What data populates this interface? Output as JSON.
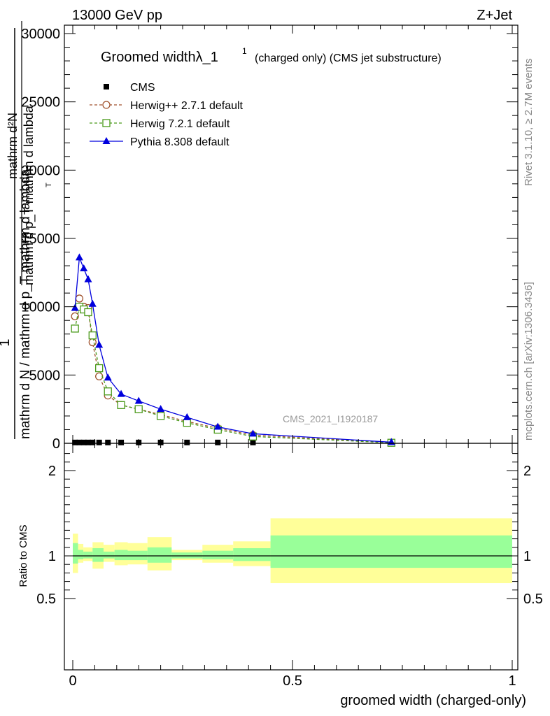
{
  "header": {
    "left": "13000 GeV pp",
    "right": "Z+Jet"
  },
  "side": {
    "rivet": "Rivet 3.1.10, ≥ 2.7M events",
    "mcplots": "mcplots.cern.ch [arXiv:1306.3436]"
  },
  "chart_data": [
    {
      "type": "line",
      "title": "Groomed widthλ_1",
      "title_sup": "1",
      "subtitle": "(charged only) (CMS jet substructure)",
      "ylabel_top": "1",
      "ylabel_bottom": "mathrm d N / mathrm d p_T mathrm d lambda",
      "ylabel_num": "mathrm d²N",
      "ylabel_den": "mathrm d p_T mathrm d lambda",
      "ylabel_sub": "T",
      "watermark": "CMS_2021_I1920187",
      "ylim": [
        0,
        30000
      ],
      "xlim": [
        0,
        1
      ],
      "yticks": [
        0,
        5000,
        10000,
        15000,
        20000,
        25000,
        30000
      ],
      "ytick_labels": [
        "0",
        "5000",
        "10000",
        "15000",
        "20000",
        "25000",
        "30000"
      ],
      "legend": {
        "placement": "top-left",
        "entries": [
          "CMS",
          "Herwig++ 2.7.1 default",
          "Herwig 7.2.1 default",
          "Pythia 8.308 default"
        ]
      },
      "colors": {
        "cms": "#000000",
        "herwigpp": "#a0522d",
        "herwig7": "#4a9a1a",
        "pythia": "#0000dd"
      },
      "series": [
        {
          "name": "CMS",
          "x": [
            0.005,
            0.015,
            0.025,
            0.035,
            0.045,
            0.06,
            0.08,
            0.11,
            0.15,
            0.2,
            0.26,
            0.33,
            0.41,
            0.725
          ],
          "y": [
            60,
            60,
            60,
            60,
            60,
            60,
            60,
            60,
            60,
            60,
            60,
            60,
            60,
            30
          ]
        },
        {
          "name": "Herwig++ 2.7.1 default",
          "x": [
            0.005,
            0.015,
            0.025,
            0.035,
            0.045,
            0.06,
            0.08,
            0.11,
            0.15,
            0.2,
            0.26,
            0.33,
            0.41,
            0.725
          ],
          "y": [
            9300,
            10600,
            10000,
            9900,
            7400,
            4900,
            3500,
            2800,
            2500,
            2100,
            1600,
            1100,
            600,
            50
          ]
        },
        {
          "name": "Herwig 7.2.1 default",
          "x": [
            0.005,
            0.015,
            0.025,
            0.035,
            0.045,
            0.06,
            0.08,
            0.11,
            0.15,
            0.2,
            0.26,
            0.33,
            0.41,
            0.725
          ],
          "y": [
            8400,
            10000,
            9800,
            9600,
            7900,
            5500,
            3800,
            2800,
            2500,
            2000,
            1500,
            1000,
            500,
            40
          ]
        },
        {
          "name": "Pythia 8.308 default",
          "x": [
            0.005,
            0.015,
            0.025,
            0.035,
            0.045,
            0.06,
            0.08,
            0.11,
            0.15,
            0.2,
            0.26,
            0.33,
            0.41,
            0.725
          ],
          "y": [
            9900,
            13600,
            12800,
            12000,
            10200,
            7200,
            4800,
            3600,
            3100,
            2500,
            1900,
            1200,
            700,
            80
          ]
        }
      ]
    },
    {
      "type": "area",
      "ylabel": "Ratio to CMS",
      "xlabel": "groomed width (charged-only)",
      "xlim": [
        0,
        1
      ],
      "ylim": [
        0.4,
        2.25
      ],
      "yticks": [
        0.5,
        1,
        2
      ],
      "ytick_labels": [
        "0.5",
        "1",
        "2"
      ],
      "xticks": [
        0,
        0.5,
        1
      ],
      "xtick_labels": [
        "0",
        "0.5",
        "1"
      ],
      "colors": {
        "outer": "#ffff99",
        "inner": "#99ff99",
        "line": "#000000"
      },
      "bins": [
        {
          "lo": 0.0,
          "hi": 0.012,
          "outer": [
            0.8,
            1.26
          ],
          "inner": [
            0.91,
            1.15
          ]
        },
        {
          "lo": 0.012,
          "hi": 0.024,
          "outer": [
            0.92,
            1.14
          ],
          "inner": [
            0.96,
            1.07
          ]
        },
        {
          "lo": 0.024,
          "hi": 0.045,
          "outer": [
            0.94,
            1.1
          ],
          "inner": [
            0.97,
            1.05
          ]
        },
        {
          "lo": 0.045,
          "hi": 0.07,
          "outer": [
            0.85,
            1.16
          ],
          "inner": [
            0.93,
            1.09
          ]
        },
        {
          "lo": 0.07,
          "hi": 0.095,
          "outer": [
            0.93,
            1.13
          ],
          "inner": [
            0.97,
            1.05
          ]
        },
        {
          "lo": 0.095,
          "hi": 0.125,
          "outer": [
            0.89,
            1.16
          ],
          "inner": [
            0.95,
            1.07
          ]
        },
        {
          "lo": 0.125,
          "hi": 0.17,
          "outer": [
            0.9,
            1.15
          ],
          "inner": [
            0.95,
            1.06
          ]
        },
        {
          "lo": 0.17,
          "hi": 0.225,
          "outer": [
            0.83,
            1.22
          ],
          "inner": [
            0.92,
            1.1
          ]
        },
        {
          "lo": 0.225,
          "hi": 0.295,
          "outer": [
            0.95,
            1.07
          ],
          "inner": [
            0.97,
            1.04
          ]
        },
        {
          "lo": 0.295,
          "hi": 0.365,
          "outer": [
            0.92,
            1.13
          ],
          "inner": [
            0.96,
            1.06
          ]
        },
        {
          "lo": 0.365,
          "hi": 0.45,
          "outer": [
            0.88,
            1.17
          ],
          "inner": [
            0.94,
            1.09
          ]
        },
        {
          "lo": 0.45,
          "hi": 1.0,
          "outer": [
            0.68,
            1.44
          ],
          "inner": [
            0.86,
            1.24
          ]
        }
      ]
    }
  ]
}
